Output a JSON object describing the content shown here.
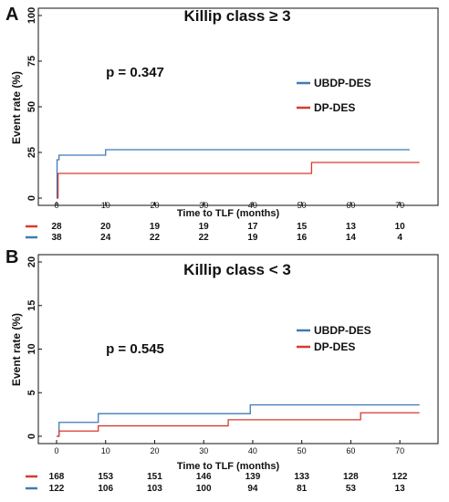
{
  "colors": {
    "blue": "#3f7bb5",
    "red": "#d63a2f"
  },
  "panels": [
    {
      "letter": "A",
      "title": "Killip class ≥ 3",
      "p_value": "p = 0.347",
      "ylabel": "Event rate (%)",
      "xlabel": "Time to TLF (months)",
      "legend": [
        "UBDP-DES",
        "DP-DES"
      ],
      "risk_table": {
        "DP-DES": [
          "28",
          "20",
          "19",
          "19",
          "17",
          "15",
          "13",
          "10"
        ],
        "UBDP-DES": [
          "38",
          "24",
          "22",
          "22",
          "19",
          "16",
          "14",
          "4"
        ]
      }
    },
    {
      "letter": "B",
      "title": "Killip class < 3",
      "p_value": "p = 0.545",
      "ylabel": "Event rate (%)",
      "xlabel": "Time to TLF (months)",
      "legend": [
        "UBDP-DES",
        "DP-DES"
      ],
      "risk_table": {
        "DP-DES": [
          "168",
          "153",
          "151",
          "146",
          "139",
          "133",
          "128",
          "122"
        ],
        "UBDP-DES": [
          "122",
          "106",
          "103",
          "100",
          "94",
          "81",
          "53",
          "13"
        ]
      }
    }
  ],
  "chart_data": [
    {
      "type": "line",
      "step": true,
      "title": "Killip class ≥ 3",
      "xlabel": "Time to TLF (months)",
      "ylabel": "Event rate (%)",
      "xlim": [
        0,
        75
      ],
      "ylim": [
        0,
        100
      ],
      "xticks": [
        0,
        10,
        20,
        30,
        40,
        50,
        60,
        70
      ],
      "yticks": [
        0,
        25,
        50,
        75,
        100
      ],
      "legend_position": "right",
      "annotation": "p = 0.347",
      "series": [
        {
          "name": "UBDP-DES",
          "color": "#3f7bb5",
          "x": [
            0,
            0.1,
            0.5,
            10,
            72
          ],
          "y": [
            0,
            21,
            23.5,
            26.5,
            26.5
          ]
        },
        {
          "name": "DP-DES",
          "color": "#d63a2f",
          "x": [
            0,
            0.3,
            52,
            74
          ],
          "y": [
            0,
            13.5,
            19.5,
            19.5
          ]
        }
      ]
    },
    {
      "type": "line",
      "step": true,
      "title": "Killip class < 3",
      "xlabel": "Time to TLF (months)",
      "ylabel": "Event rate (%)",
      "xlim": [
        0,
        75
      ],
      "ylim": [
        0,
        20
      ],
      "xticks": [
        0,
        10,
        20,
        30,
        40,
        50,
        60,
        70
      ],
      "yticks": [
        0,
        5,
        10,
        15,
        20
      ],
      "legend_position": "right",
      "annotation": "p = 0.545",
      "series": [
        {
          "name": "UBDP-DES",
          "color": "#3f7bb5",
          "x": [
            0,
            0.5,
            8.5,
            39.5,
            74
          ],
          "y": [
            0,
            1.6,
            2.6,
            3.6,
            3.6
          ]
        },
        {
          "name": "DP-DES",
          "color": "#d63a2f",
          "x": [
            0,
            0.5,
            8.5,
            35,
            62,
            74
          ],
          "y": [
            0,
            0.6,
            1.2,
            1.9,
            2.7,
            2.7
          ]
        }
      ]
    }
  ]
}
